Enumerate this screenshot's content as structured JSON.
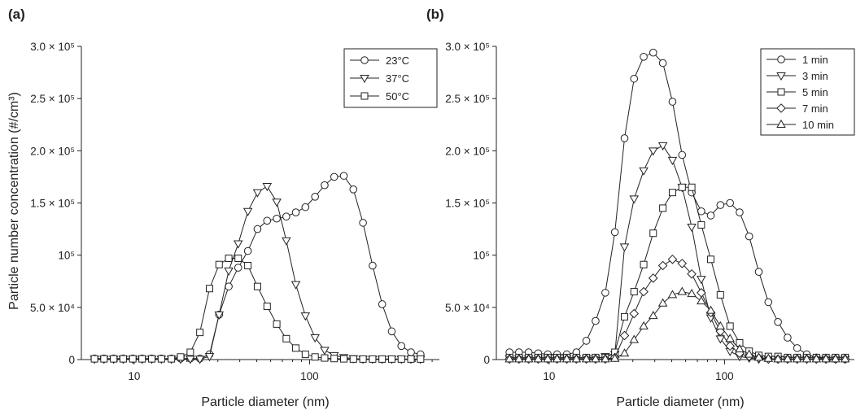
{
  "y_axis_title": "Particle number concentration (#/cm³)",
  "chart_data": [
    {
      "type": "line",
      "panel_label": "(a)",
      "xlabel": "Particle diameter (nm)",
      "ylabel": "Particle number concentration (#/cm³)",
      "xscale": "log",
      "xlim": [
        5,
        550
      ],
      "ylim": [
        0,
        300000
      ],
      "grid": false,
      "legend_position": "top-right",
      "x_ticks": [
        {
          "value": 10,
          "label": "10"
        },
        {
          "value": 100,
          "label": "100"
        }
      ],
      "y_ticks": [
        {
          "value": 0,
          "label": "0"
        },
        {
          "value": 50000,
          "label": "5.0 × 10⁴"
        },
        {
          "value": 100000,
          "label": "10⁵"
        },
        {
          "value": 150000,
          "label": "1.5 × 10⁵"
        },
        {
          "value": 200000,
          "label": "2.0 × 10⁵"
        },
        {
          "value": 250000,
          "label": "2.5 × 10⁵"
        },
        {
          "value": 300000,
          "label": "3.0 × 10⁵"
        }
      ],
      "x": [
        5.94,
        6.73,
        7.64,
        8.66,
        9.82,
        11.1,
        12.6,
        14.3,
        16.3,
        18.4,
        20.9,
        23.7,
        26.9,
        30.5,
        34.6,
        39.2,
        44.5,
        50.5,
        57.3,
        65.0,
        73.7,
        83.5,
        94.7,
        107.5,
        121.9,
        138.2,
        156.8,
        177.8,
        201.7,
        228.8,
        259.5,
        294.3,
        333.8,
        378.6,
        429.4
      ],
      "series": [
        {
          "name": "23°C",
          "marker": "circle",
          "values": [
            1000,
            1000,
            1000,
            1000,
            1000,
            1000,
            1000,
            1000,
            1000,
            1000,
            1000,
            1000,
            5000,
            43000,
            70000,
            88000,
            104000,
            125000,
            133000,
            135000,
            137000,
            141000,
            146000,
            156000,
            167000,
            175000,
            176000,
            163000,
            131000,
            90000,
            53000,
            27000,
            13000,
            7000,
            5000
          ]
        },
        {
          "name": "37°C",
          "marker": "triangle-down",
          "values": [
            500,
            500,
            500,
            500,
            500,
            500,
            500,
            500,
            500,
            500,
            500,
            500,
            3000,
            43000,
            85000,
            111000,
            142000,
            160000,
            166000,
            151000,
            114000,
            72000,
            42000,
            21000,
            9000,
            4000,
            2000,
            1000,
            500,
            500,
            500,
            500,
            500,
            500,
            500
          ]
        },
        {
          "name": "50°C",
          "marker": "square",
          "values": [
            700,
            700,
            700,
            700,
            700,
            700,
            700,
            700,
            700,
            2500,
            7000,
            26000,
            68000,
            91000,
            97000,
            97000,
            90000,
            70000,
            51000,
            34000,
            20000,
            11000,
            5000,
            2500,
            1500,
            1000,
            700,
            500,
            500,
            500,
            500,
            500,
            500,
            500,
            500
          ]
        }
      ]
    },
    {
      "type": "line",
      "panel_label": "(b)",
      "xlabel": "Particle diameter (nm)",
      "ylabel": "",
      "xscale": "log",
      "xlim": [
        5,
        550
      ],
      "ylim": [
        0,
        300000
      ],
      "grid": false,
      "legend_position": "top-right",
      "x_ticks": [
        {
          "value": 10,
          "label": "10"
        },
        {
          "value": 100,
          "label": "100"
        }
      ],
      "y_ticks": [
        {
          "value": 0,
          "label": "0"
        },
        {
          "value": 50000,
          "label": "5.0 × 10⁴"
        },
        {
          "value": 100000,
          "label": "10⁵"
        },
        {
          "value": 150000,
          "label": "1.5 × 10⁵"
        },
        {
          "value": 200000,
          "label": "2.0 × 10⁵"
        },
        {
          "value": 250000,
          "label": "2.5 × 10⁵"
        },
        {
          "value": 300000,
          "label": "3.0 × 10⁵"
        }
      ],
      "x": [
        5.94,
        6.73,
        7.64,
        8.66,
        9.82,
        11.1,
        12.6,
        14.3,
        16.3,
        18.4,
        20.9,
        23.7,
        26.9,
        30.5,
        34.6,
        39.2,
        44.5,
        50.5,
        57.3,
        65.0,
        73.7,
        83.5,
        94.7,
        107.5,
        121.9,
        138.2,
        156.8,
        177.8,
        201.7,
        228.8,
        259.5,
        294.3,
        333.8,
        378.6,
        429.4,
        487.0
      ],
      "series": [
        {
          "name": "1 min",
          "marker": "circle",
          "values": [
            7000,
            7000,
            7000,
            6000,
            5000,
            5000,
            5000,
            7000,
            18000,
            37000,
            64000,
            122000,
            212000,
            269000,
            290000,
            294000,
            284000,
            247000,
            196000,
            160000,
            142000,
            138000,
            148000,
            150000,
            141000,
            118000,
            84000,
            55000,
            36000,
            21000,
            11000,
            5000,
            2000,
            1000,
            500,
            500
          ]
        },
        {
          "name": "3 min",
          "marker": "triangle-down",
          "values": [
            1000,
            1000,
            1000,
            1000,
            1000,
            1000,
            1000,
            1000,
            1000,
            1000,
            3000,
            5000,
            108000,
            154000,
            181000,
            200000,
            205000,
            191000,
            165000,
            127000,
            77000,
            40000,
            20000,
            8000,
            3000,
            1500,
            500,
            500,
            500,
            500,
            500,
            500,
            500,
            500,
            500,
            500
          ]
        },
        {
          "name": "5 min",
          "marker": "square",
          "values": [
            2000,
            2000,
            2000,
            2000,
            2000,
            2000,
            2000,
            2000,
            2000,
            2000,
            2000,
            7000,
            41000,
            65000,
            91000,
            121000,
            145000,
            160000,
            165000,
            165000,
            129000,
            96000,
            62000,
            32000,
            16000,
            8000,
            4000,
            3000,
            3000,
            2000,
            2000,
            2000,
            2000,
            2000,
            2000,
            2000
          ]
        },
        {
          "name": "7 min",
          "marker": "diamond",
          "values": [
            500,
            500,
            500,
            500,
            500,
            500,
            500,
            500,
            500,
            500,
            500,
            2000,
            23000,
            44000,
            65000,
            78000,
            90000,
            96000,
            92000,
            82000,
            64000,
            45000,
            27000,
            13000,
            6000,
            3000,
            1500,
            500,
            500,
            500,
            500,
            500,
            500,
            500,
            500,
            500
          ]
        },
        {
          "name": "10 min",
          "marker": "triangle-up",
          "values": [
            500,
            500,
            500,
            500,
            500,
            500,
            500,
            500,
            500,
            500,
            500,
            1000,
            6000,
            19000,
            32000,
            42000,
            54000,
            62000,
            65000,
            63000,
            56000,
            47000,
            32000,
            20000,
            10000,
            5000,
            2000,
            1000,
            500,
            500,
            500,
            500,
            500,
            500,
            500,
            500
          ]
        }
      ]
    }
  ]
}
